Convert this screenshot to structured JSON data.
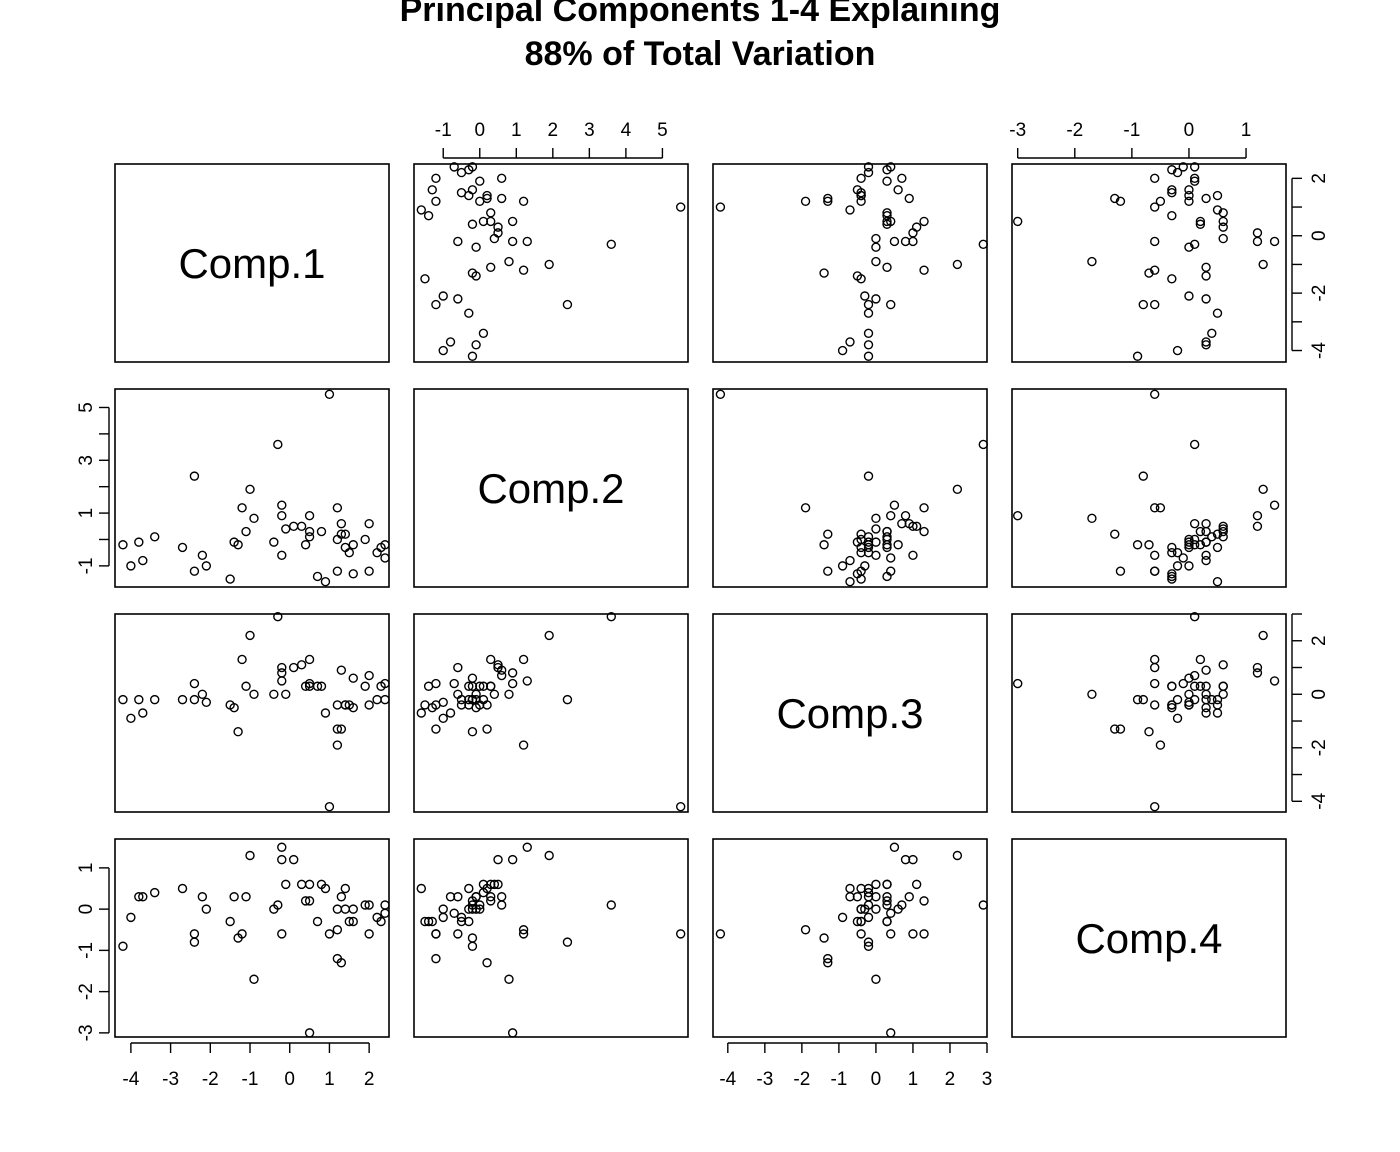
{
  "title": {
    "line1": "Principal Components 1-4 Explaining",
    "line2": "88% of Total Variation"
  },
  "chart_data": {
    "type": "scatter",
    "matrix": true,
    "variables": [
      "Comp.1",
      "Comp.2",
      "Comp.3",
      "Comp.4"
    ],
    "axis_ticks": {
      "Comp.1": [
        -4,
        -3,
        -2,
        -1,
        0,
        1,
        2
      ],
      "Comp.2": [
        -1,
        0,
        1,
        2,
        3,
        4,
        5
      ],
      "Comp.3": [
        -4,
        -3,
        -2,
        -1,
        0,
        1,
        2,
        3
      ],
      "Comp.4": [
        -3,
        -2,
        -1,
        0,
        1
      ]
    },
    "axis_tick_labels": {
      "Comp.1": [
        "-4",
        "-3",
        "-2",
        "-1",
        "0",
        "1",
        "2"
      ],
      "Comp.2_top": [
        "-1",
        "0",
        "1",
        "2",
        "3",
        "4",
        "5"
      ],
      "Comp.2_left": [
        "-1",
        "1",
        "3",
        "5"
      ],
      "Comp.3_bottom": [
        "-4",
        "-3",
        "-2",
        "-1",
        "0",
        "1",
        "2",
        "3"
      ],
      "Comp.3_right": [
        "-4",
        "-2",
        "0",
        "2"
      ],
      "Comp.4_top": [
        "-3",
        "-2",
        "-1",
        "0",
        "1"
      ],
      "Comp.4_left": [
        "-3",
        "-2",
        "-1",
        "0",
        "1"
      ]
    },
    "axis_ranges": {
      "Comp.1": [
        -4.4,
        2.5
      ],
      "Comp.2": [
        -1.8,
        5.7
      ],
      "Comp.3": [
        -4.4,
        3.0
      ],
      "Comp.4": [
        -3.1,
        1.7
      ]
    },
    "points": [
      {
        "c1": 1.0,
        "c2": 5.5,
        "c3": -4.2,
        "c4": -0.6
      },
      {
        "c1": -0.3,
        "c2": 3.6,
        "c3": 2.9,
        "c4": 0.1
      },
      {
        "c1": -2.4,
        "c2": 2.4,
        "c3": -0.2,
        "c4": -0.8
      },
      {
        "c1": -1.0,
        "c2": 1.9,
        "c3": 2.2,
        "c4": 1.3
      },
      {
        "c1": -1.2,
        "c2": 1.2,
        "c3": 1.3,
        "c4": -0.6
      },
      {
        "c1": 1.2,
        "c2": 1.2,
        "c3": -1.9,
        "c4": -0.5
      },
      {
        "c1": -0.2,
        "c2": 1.3,
        "c3": 0.5,
        "c4": 1.5
      },
      {
        "c1": -0.2,
        "c2": 0.9,
        "c3": 0.8,
        "c4": 1.2
      },
      {
        "c1": -0.9,
        "c2": 0.8,
        "c3": 0.0,
        "c4": -1.7
      },
      {
        "c1": 0.1,
        "c2": 0.5,
        "c3": 1.0,
        "c4": 1.2
      },
      {
        "c1": 0.3,
        "c2": 0.5,
        "c3": 1.1,
        "c4": 0.6
      },
      {
        "c1": 0.5,
        "c2": 0.3,
        "c3": 1.3,
        "c4": 0.2
      },
      {
        "c1": 1.3,
        "c2": 0.6,
        "c3": 0.9,
        "c4": 0.3
      },
      {
        "c1": 2.0,
        "c2": 0.6,
        "c3": 0.7,
        "c4": 0.1
      },
      {
        "c1": -0.1,
        "c2": 0.4,
        "c3": 0.0,
        "c4": 0.6
      },
      {
        "c1": 0.8,
        "c2": 0.3,
        "c3": 0.3,
        "c4": 0.6
      },
      {
        "c1": 1.4,
        "c2": 0.2,
        "c3": -0.4,
        "c4": 0.5
      },
      {
        "c1": -1.1,
        "c2": 0.3,
        "c3": 0.3,
        "c4": 0.3
      },
      {
        "c1": -3.4,
        "c2": 0.1,
        "c3": -0.2,
        "c4": 0.4
      },
      {
        "c1": 0.5,
        "c2": 0.1,
        "c3": 0.3,
        "c4": 0.6
      },
      {
        "c1": 1.2,
        "c2": 0.0,
        "c3": -0.4,
        "c4": 0.0
      },
      {
        "c1": 1.9,
        "c2": 0.0,
        "c3": 0.3,
        "c4": 0.1
      },
      {
        "c1": -0.4,
        "c2": -0.1,
        "c3": 0.0,
        "c4": 0.0
      },
      {
        "c1": -1.4,
        "c2": -0.1,
        "c3": -0.5,
        "c4": 0.3
      },
      {
        "c1": -4.2,
        "c2": -0.2,
        "c3": -0.2,
        "c4": -0.9
      },
      {
        "c1": -3.8,
        "c2": -0.1,
        "c3": -0.2,
        "c4": 0.3
      },
      {
        "c1": 0.4,
        "c2": -0.2,
        "c3": 0.3,
        "c4": 0.2
      },
      {
        "c1": 1.6,
        "c2": -0.2,
        "c3": 0.6,
        "c4": 0.0
      },
      {
        "c1": -2.7,
        "c2": -0.3,
        "c3": -0.2,
        "c4": 0.5
      },
      {
        "c1": 1.4,
        "c2": -0.3,
        "c3": -0.4,
        "c4": 0.0
      },
      {
        "c1": 2.3,
        "c2": -0.3,
        "c3": 0.3,
        "c4": -0.3
      },
      {
        "c1": 2.4,
        "c2": -0.2,
        "c3": -0.2,
        "c4": 0.1
      },
      {
        "c1": -0.2,
        "c2": -0.6,
        "c3": 1.0,
        "c4": -0.6
      },
      {
        "c1": -2.2,
        "c2": -0.6,
        "c3": 0.0,
        "c4": 0.3
      },
      {
        "c1": 1.5,
        "c2": -0.5,
        "c3": -0.4,
        "c4": -0.3
      },
      {
        "c1": 2.2,
        "c2": -0.5,
        "c3": -0.2,
        "c4": -0.2
      },
      {
        "c1": 2.4,
        "c2": -0.7,
        "c3": 0.4,
        "c4": -0.1
      },
      {
        "c1": -3.7,
        "c2": -0.8,
        "c3": -0.7,
        "c4": 0.3
      },
      {
        "c1": -4.0,
        "c2": -1.0,
        "c3": -0.9,
        "c4": -0.2
      },
      {
        "c1": -2.1,
        "c2": -1.0,
        "c3": -0.3,
        "c4": 0.0
      },
      {
        "c1": 1.2,
        "c2": -1.2,
        "c3": -1.3,
        "c4": -1.2
      },
      {
        "c1": -2.4,
        "c2": -1.2,
        "c3": 0.4,
        "c4": -0.6
      },
      {
        "c1": 2.0,
        "c2": -1.2,
        "c3": -0.4,
        "c4": -0.6
      },
      {
        "c1": 1.6,
        "c2": -1.3,
        "c3": -0.5,
        "c4": -0.3
      },
      {
        "c1": 0.7,
        "c2": -1.4,
        "c3": 0.3,
        "c4": -0.3
      },
      {
        "c1": -1.5,
        "c2": -1.5,
        "c3": -0.4,
        "c4": -0.3
      },
      {
        "c1": 0.9,
        "c2": -1.6,
        "c3": -0.7,
        "c4": 0.5
      },
      {
        "c1": 0.5,
        "c2": 0.9,
        "c3": 0.4,
        "c4": -3.0
      },
      {
        "c1": -1.3,
        "c2": -0.2,
        "c3": -1.4,
        "c4": -0.7
      },
      {
        "c1": 1.3,
        "c2": 0.2,
        "c3": -1.3,
        "c4": -1.3
      }
    ]
  }
}
